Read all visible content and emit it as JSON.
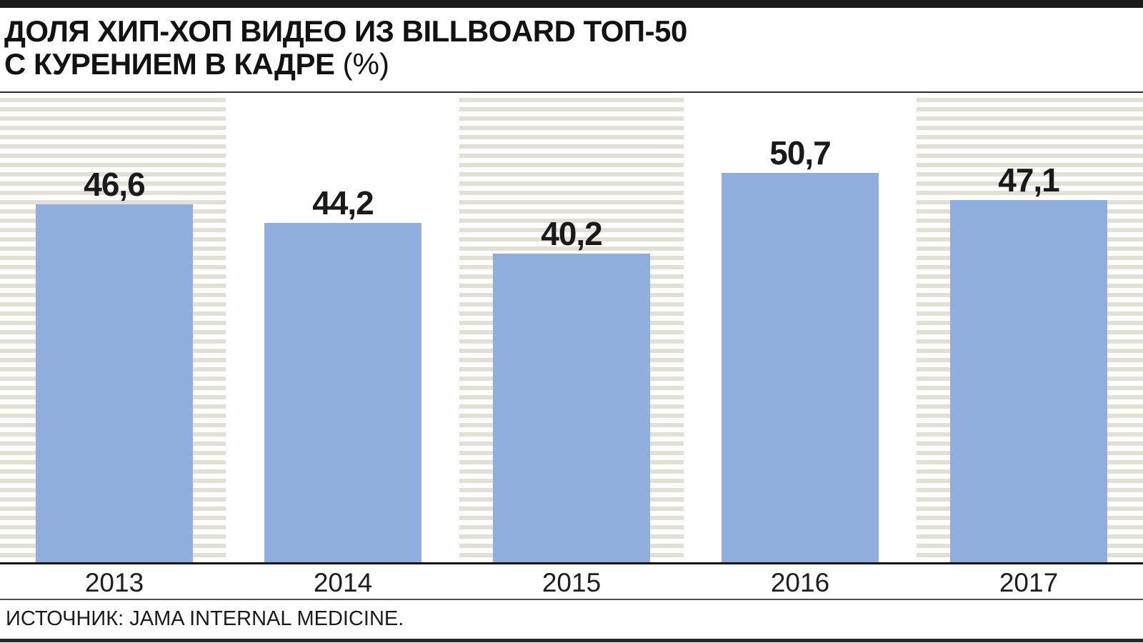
{
  "header": {
    "title_line1": "ДОЛЯ ХИП-ХОП ВИДЕО ИЗ BILLBOARD ТОП-50",
    "title_line2": "С КУРЕНИЕМ В КАДРЕ",
    "unit": "(%)"
  },
  "chart_data": {
    "type": "bar",
    "title": "ДОЛЯ ХИП-ХОП ВИДЕО ИЗ BILLBOARD ТОП-50 С КУРЕНИЕМ В КАДРЕ (%)",
    "categories": [
      "2013",
      "2014",
      "2015",
      "2016",
      "2017"
    ],
    "values": [
      46.6,
      44.2,
      40.2,
      50.7,
      47.1
    ],
    "value_labels": [
      "46,6",
      "44,2",
      "40,2",
      "50,7",
      "47,1"
    ],
    "ylabel": "",
    "xlabel": "",
    "ylim": [
      0,
      60.8
    ],
    "grid": false,
    "legend_position": "none",
    "bar_color": "#8FAEDC",
    "stripe_color": "#E1E0D6",
    "striped_columns": [
      0,
      2,
      4
    ]
  },
  "footer": {
    "source": "ИСТОЧНИК: JAMA INTERNAL MEDICINE."
  },
  "colors": {
    "accent_bar": "#8FAEDC",
    "stripe": "#E1E0D6",
    "rule_dark": "#1B1B1B",
    "text": "#121212"
  }
}
